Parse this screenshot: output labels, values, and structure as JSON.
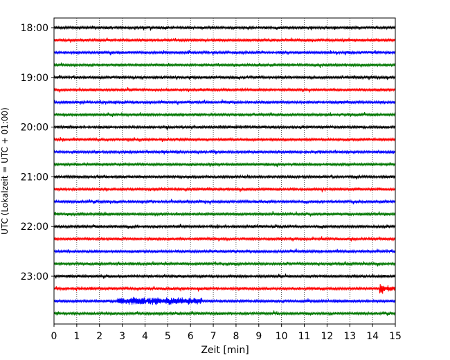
{
  "chart_data": {
    "type": "line",
    "title": "",
    "xlabel": "Zeit  [min]",
    "ylabel": "UTC (Lokalzeit = UTC + 01:00)",
    "xlim": [
      0,
      15
    ],
    "x_ticks": [
      "0",
      "1",
      "2",
      "3",
      "4",
      "5",
      "6",
      "7",
      "8",
      "9",
      "10",
      "11",
      "12",
      "13",
      "14",
      "15"
    ],
    "y_ticks": [
      "18:00",
      "19:00",
      "20:00",
      "21:00",
      "22:00",
      "23:00"
    ],
    "grid": "vertical dotted",
    "trace_interval_min": 15,
    "trace_colors": [
      "#000000",
      "#ff0000",
      "#0000ff",
      "#007700"
    ],
    "traces": [
      {
        "start": "18:00",
        "color": "#000000"
      },
      {
        "start": "18:15",
        "color": "#ff0000"
      },
      {
        "start": "18:30",
        "color": "#0000ff"
      },
      {
        "start": "18:45",
        "color": "#007700"
      },
      {
        "start": "19:00",
        "color": "#000000"
      },
      {
        "start": "19:15",
        "color": "#ff0000"
      },
      {
        "start": "19:30",
        "color": "#0000ff"
      },
      {
        "start": "19:45",
        "color": "#007700"
      },
      {
        "start": "20:00",
        "color": "#000000"
      },
      {
        "start": "20:15",
        "color": "#ff0000"
      },
      {
        "start": "20:30",
        "color": "#0000ff"
      },
      {
        "start": "20:45",
        "color": "#007700"
      },
      {
        "start": "21:00",
        "color": "#000000"
      },
      {
        "start": "21:15",
        "color": "#ff0000"
      },
      {
        "start": "21:30",
        "color": "#0000ff"
      },
      {
        "start": "21:45",
        "color": "#007700"
      },
      {
        "start": "22:00",
        "color": "#000000"
      },
      {
        "start": "22:15",
        "color": "#ff0000"
      },
      {
        "start": "22:30",
        "color": "#0000ff"
      },
      {
        "start": "22:45",
        "color": "#007700"
      },
      {
        "start": "23:00",
        "color": "#000000"
      },
      {
        "start": "23:15",
        "color": "#ff0000",
        "event_at_min": 14.3
      },
      {
        "start": "23:30",
        "color": "#0000ff",
        "burst_min": [
          2.8,
          6.5
        ]
      },
      {
        "start": "23:45",
        "color": "#007700"
      }
    ]
  }
}
